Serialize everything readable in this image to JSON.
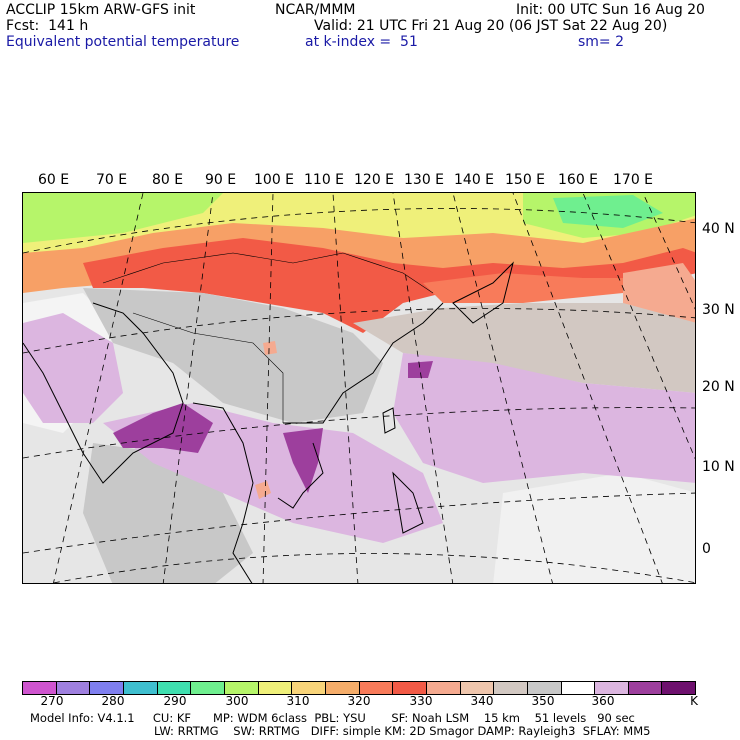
{
  "header": {
    "model": "ACCLIP 15km ARW-GFS init",
    "org": "NCAR/MMM",
    "init": "Init: 00 UTC Sun 16 Aug 20",
    "fcst": "Fcst:  141 h",
    "valid": "Valid: 21 UTC Fri 21 Aug 20 (06 JST Sat 22 Aug 20)",
    "field": "Equivalent potential temperature",
    "level": "at k-index =  51",
    "smooth": "sm= 2"
  },
  "map": {
    "lon_labels": [
      "60 E",
      "70 E",
      "80 E",
      "90 E",
      "100 E",
      "110 E",
      "120 E",
      "130 E",
      "140 E",
      "150 E",
      "160 E",
      "170 E"
    ],
    "lat_labels": [
      "40 N",
      "30 N",
      "20 N",
      "10 N",
      "0"
    ],
    "projection": "polar-stereographic",
    "gridlines": "dashed",
    "region_colors": {
      "ocean_background": "#e6e6e6",
      "high_theta_band": "#f25a46",
      "warm_band": "#f7a066",
      "green_high_lat": "#b6f56a",
      "tropical_purple": "#d5b3de",
      "deep_purple": "#8e3aa0",
      "gray_cells": "#bebebe"
    }
  },
  "colorbar": {
    "unit": "K",
    "colors": [
      "#cf55cf",
      "#9f80df",
      "#7f7fef",
      "#3fbfcf",
      "#3fdfaf",
      "#6fef8f",
      "#b6f56a",
      "#eff07a",
      "#f8d47a",
      "#f5ad6a",
      "#f87b5a",
      "#f25a46",
      "#f5aa90",
      "#efc6ad",
      "#d2c8c2",
      "#c8c8c8",
      "#ffffff",
      "#dcb6e0",
      "#9d3f9d",
      "#6e116e"
    ],
    "labels": [
      "270",
      "280",
      "290",
      "300",
      "310",
      "320",
      "330",
      "340",
      "350",
      "360"
    ]
  },
  "footer": {
    "line1": "Model Info: V4.1.1     CU: KF      MP: WDM 6class  PBL: YSU       SF: Noah LSM    15 km    51 levels   90 sec",
    "line2": "LW: RRTMG    SW: RRTMG   DIFF: simple KM: 2D Smagor DAMP: Rayleigh3  SFLAY: MM5"
  }
}
